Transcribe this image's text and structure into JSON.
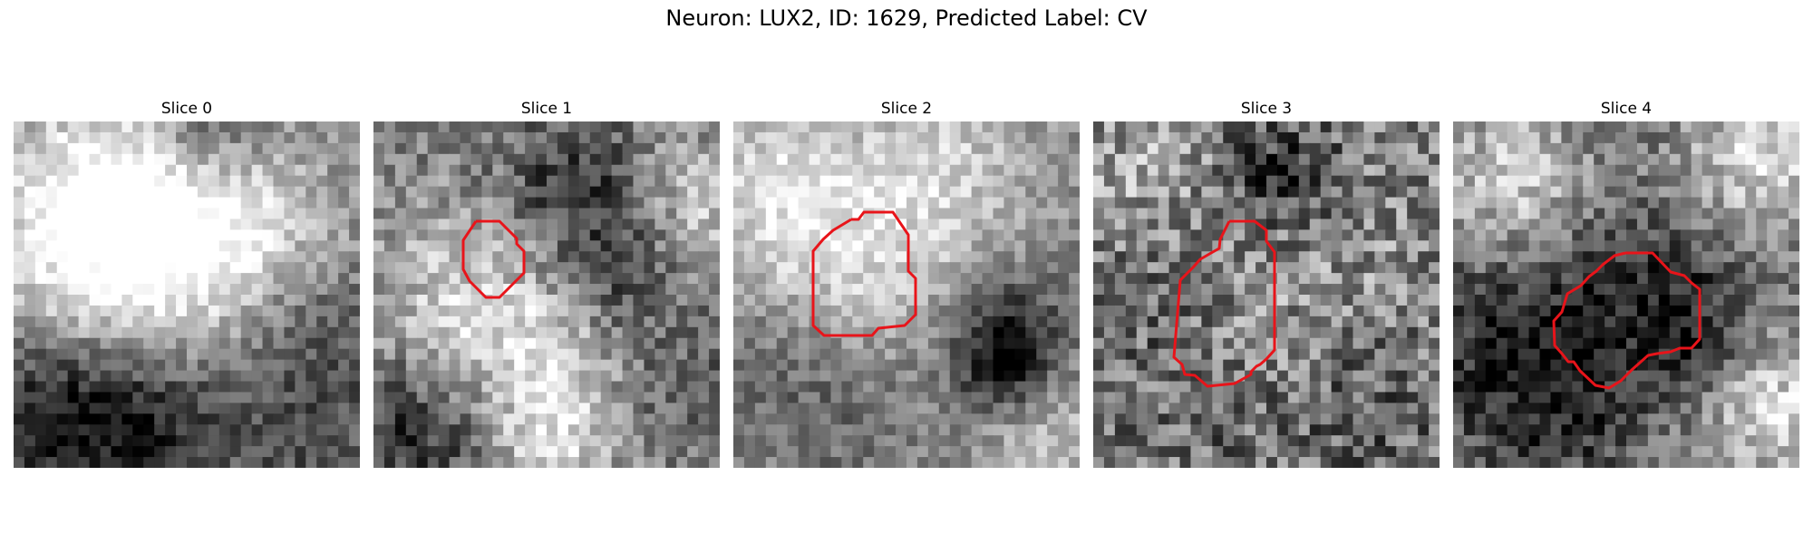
{
  "figure": {
    "title": "Neuron: LUX2, ID: 1629, Predicted Label: CV"
  },
  "panels": [
    {
      "title": "Slice 0",
      "has_contour": false
    },
    {
      "title": "Slice 1",
      "has_contour": true
    },
    {
      "title": "Slice 2",
      "has_contour": true
    },
    {
      "title": "Slice 3",
      "has_contour": true
    },
    {
      "title": "Slice 4",
      "has_contour": true
    }
  ],
  "colors": {
    "contour": "#e8141a",
    "background": "#ffffff"
  }
}
